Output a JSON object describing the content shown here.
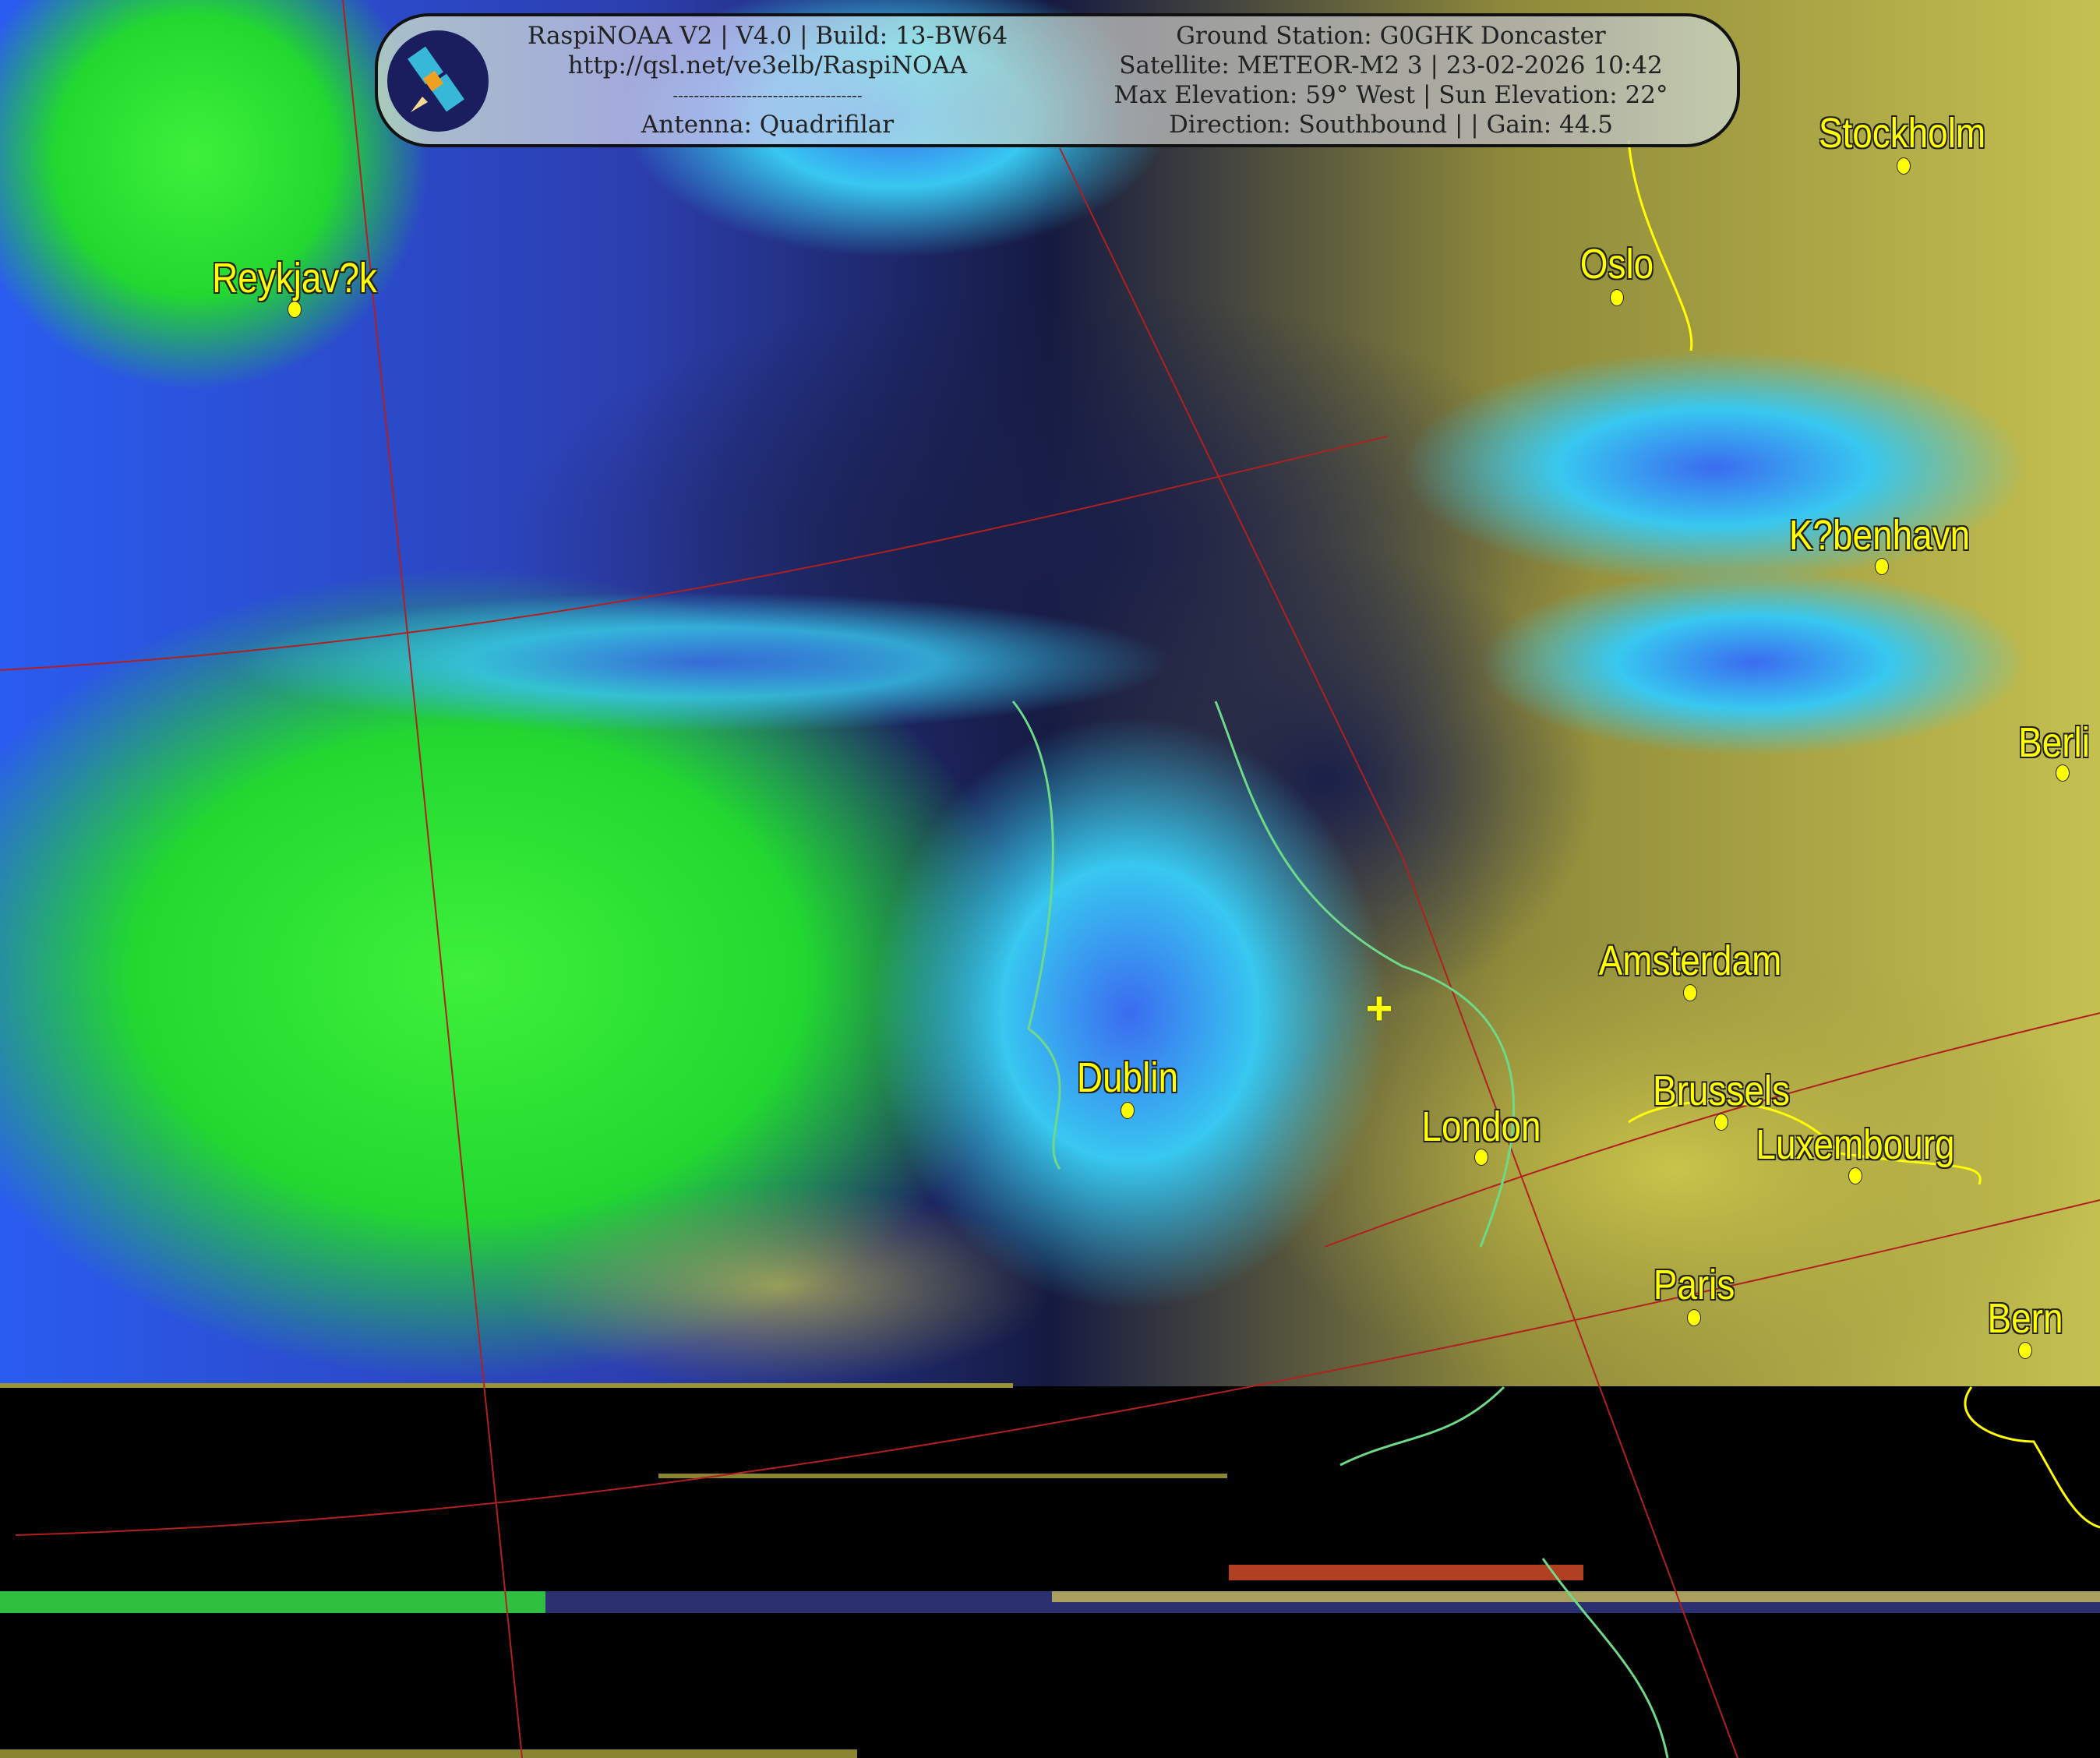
{
  "header": {
    "left": [
      "RaspiNOAA V2 | V4.0 | Build: 13-BW64",
      "http://qsl.net/ve3elb/RaspiNOAA",
      "------------------------------------",
      "Antenna: Quadrifilar"
    ],
    "right": [
      "Ground Station: G0GHK Doncaster",
      "Satellite: METEOR-M2 3 | 23-02-2026 10:42",
      "Max Elevation: 59° West | Sun Elevation: 22°",
      "Direction: Southbound | | Gain: 44.5"
    ],
    "logo_icon": "satellite-icon"
  },
  "cities": [
    "Stockholm",
    "Oslo",
    "Reykjav?k",
    "K?benhavn",
    "Berli",
    "Amsterdam",
    "Dublin",
    "Brussels",
    "London",
    "Luxembourg",
    "Paris",
    "Bern"
  ],
  "colors": {
    "label": "#ffff00",
    "coastline": "#6fd98a",
    "border": "#ffff00",
    "grid": "#b02020"
  }
}
